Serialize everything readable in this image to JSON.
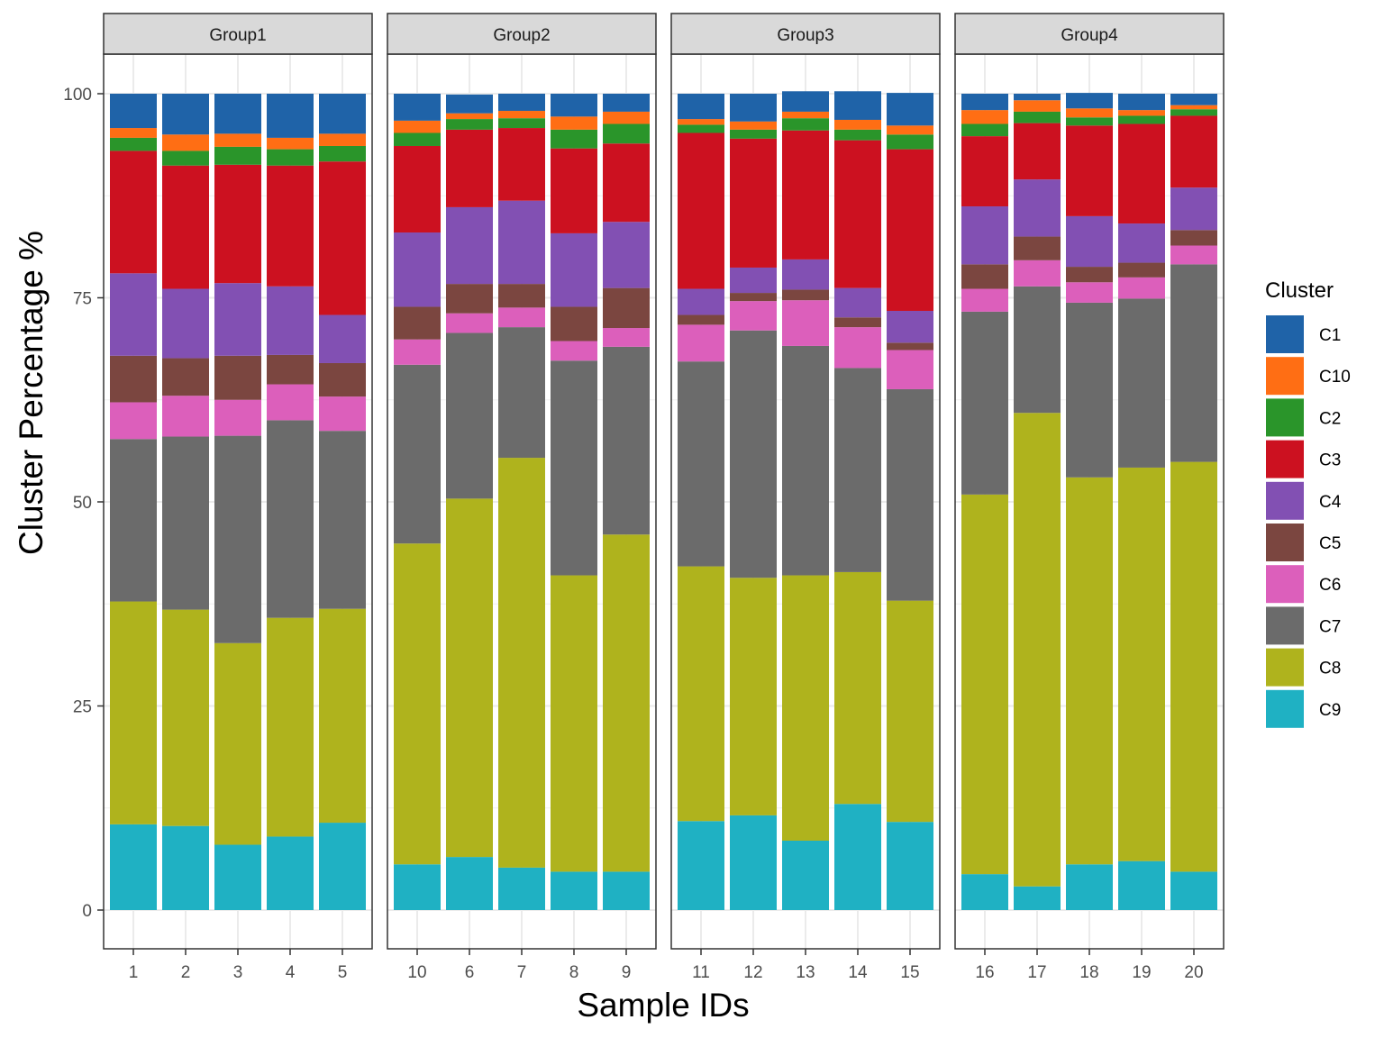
{
  "chart_data": {
    "type": "bar",
    "stacked": true,
    "xlabel": "Sample IDs",
    "ylabel": "Cluster Percentage %",
    "ylim": [
      -7.5,
      106
    ],
    "yticks": [
      0,
      25,
      50,
      75,
      100
    ],
    "grid": true,
    "legend": {
      "title": "Cluster",
      "placement": "right",
      "entries": [
        {
          "name": "C1",
          "color": "#1f63a8"
        },
        {
          "name": "C10",
          "color": "#ff6e14"
        },
        {
          "name": "C2",
          "color": "#2a952a"
        },
        {
          "name": "C3",
          "color": "#cc1120"
        },
        {
          "name": "C4",
          "color": "#8250b3"
        },
        {
          "name": "C5",
          "color": "#7b4640"
        },
        {
          "name": "C6",
          "color": "#dc5fbb"
        },
        {
          "name": "C7",
          "color": "#6b6b6b"
        },
        {
          "name": "C8",
          "color": "#afb31d"
        },
        {
          "name": "C9",
          "color": "#1fb1c3"
        }
      ]
    },
    "stack_order_bottom_to_top": [
      "C9",
      "C8",
      "C7",
      "C6",
      "C5",
      "C4",
      "C3",
      "C2",
      "C10",
      "C1"
    ],
    "facets": [
      {
        "name": "Group1",
        "samples": [
          "1",
          "2",
          "3",
          "4",
          "5"
        ],
        "values": {
          "C9": [
            10.5,
            10.3,
            8.0,
            9.0,
            10.7
          ],
          "C8": [
            27.3,
            26.5,
            24.7,
            26.8,
            26.2
          ],
          "C7": [
            19.9,
            21.2,
            25.4,
            24.2,
            21.8
          ],
          "C6": [
            4.5,
            5.0,
            4.4,
            4.4,
            4.2
          ],
          "C5": [
            5.7,
            4.6,
            5.4,
            3.6,
            4.1
          ],
          "C4": [
            10.1,
            8.5,
            8.9,
            8.4,
            5.9
          ],
          "C3": [
            15.0,
            15.1,
            14.5,
            14.8,
            18.8
          ],
          "C2": [
            1.6,
            1.8,
            2.2,
            2.0,
            1.9
          ],
          "C10": [
            1.2,
            2.0,
            1.6,
            1.4,
            1.5
          ],
          "C1": [
            4.2,
            5.0,
            4.9,
            5.4,
            4.9
          ]
        }
      },
      {
        "name": "Group2",
        "samples": [
          "10",
          "6",
          "7",
          "8",
          "9"
        ],
        "values": {
          "C9": [
            5.6,
            6.5,
            5.2,
            4.7,
            4.7
          ],
          "C8": [
            39.3,
            43.9,
            50.2,
            36.3,
            41.3
          ],
          "C7": [
            21.9,
            20.3,
            16.0,
            26.3,
            23.0
          ],
          "C6": [
            3.1,
            2.4,
            2.4,
            2.4,
            2.3
          ],
          "C5": [
            4.0,
            3.6,
            2.9,
            4.2,
            4.9
          ],
          "C4": [
            9.1,
            9.4,
            10.2,
            9.0,
            8.1
          ],
          "C3": [
            10.6,
            9.5,
            8.9,
            10.4,
            9.6
          ],
          "C2": [
            1.6,
            1.3,
            1.2,
            2.3,
            2.4
          ],
          "C10": [
            1.5,
            0.7,
            0.9,
            1.6,
            1.5
          ],
          "C1": [
            3.3,
            2.3,
            2.1,
            2.8,
            2.2
          ]
        }
      },
      {
        "name": "Group3",
        "samples": [
          "11",
          "12",
          "13",
          "14",
          "15"
        ],
        "values": {
          "C9": [
            10.9,
            11.6,
            8.5,
            13.0,
            10.8
          ],
          "C8": [
            31.2,
            29.1,
            32.5,
            28.4,
            27.1
          ],
          "C7": [
            25.1,
            30.3,
            28.1,
            25.0,
            25.9
          ],
          "C6": [
            4.5,
            3.6,
            5.6,
            5.0,
            4.8
          ],
          "C5": [
            1.2,
            1.0,
            1.3,
            1.2,
            0.9
          ],
          "C4": [
            3.2,
            3.1,
            3.7,
            3.6,
            3.9
          ],
          "C3": [
            19.1,
            15.8,
            15.8,
            18.1,
            19.8
          ],
          "C2": [
            1.0,
            1.1,
            1.5,
            1.3,
            1.8
          ],
          "C10": [
            0.7,
            1.0,
            0.8,
            1.2,
            1.1
          ],
          "C1": [
            3.1,
            3.4,
            2.5,
            3.5,
            4.0
          ]
        }
      },
      {
        "name": "Group4",
        "samples": [
          "16",
          "17",
          "18",
          "19",
          "20"
        ],
        "values": {
          "C9": [
            4.4,
            2.9,
            5.6,
            6.0,
            4.7
          ],
          "C8": [
            46.5,
            58.0,
            47.4,
            48.2,
            50.2
          ],
          "C7": [
            22.4,
            15.5,
            21.4,
            20.7,
            24.2
          ],
          "C6": [
            2.8,
            3.2,
            2.5,
            2.6,
            2.3
          ],
          "C5": [
            3.0,
            2.9,
            1.9,
            1.8,
            1.9
          ],
          "C4": [
            7.1,
            7.0,
            6.2,
            4.8,
            5.2
          ],
          "C3": [
            8.6,
            6.9,
            11.1,
            12.2,
            8.8
          ],
          "C2": [
            1.5,
            1.4,
            1.0,
            1.0,
            0.8
          ],
          "C10": [
            1.7,
            1.4,
            1.1,
            0.7,
            0.5
          ],
          "C1": [
            2.0,
            0.8,
            1.9,
            2.0,
            1.4
          ]
        }
      }
    ]
  }
}
